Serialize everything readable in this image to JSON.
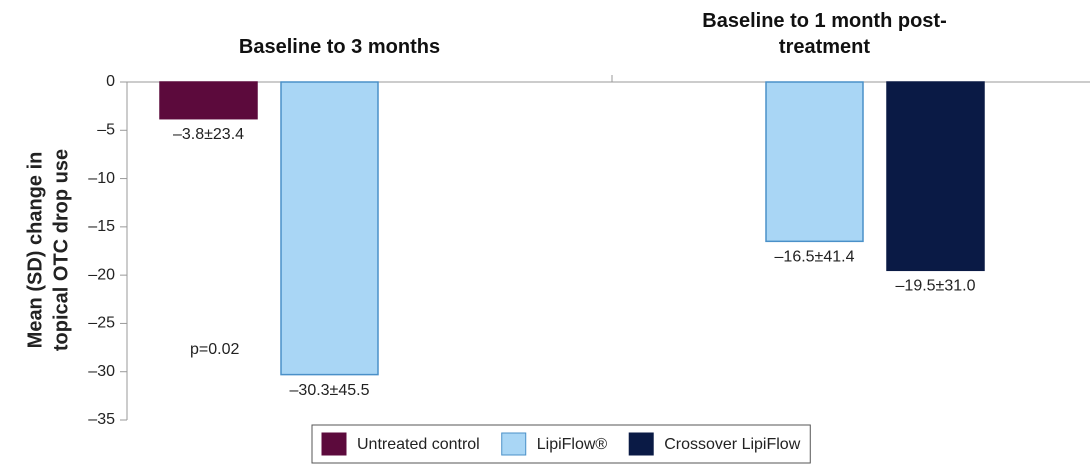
{
  "chart_data": {
    "type": "bar",
    "ylabel": [
      "Mean (SD) change in",
      "topical OTC drop use"
    ],
    "categories": [
      "Baseline to 3 months",
      "Baseline to 1 month post-treatment"
    ],
    "series": [
      {
        "name": "Untreated control",
        "color": "#5c0a3c",
        "values": [
          -3.8,
          null
        ],
        "value_labels": [
          "–3.8±23.4",
          null
        ]
      },
      {
        "name": "LipiFlow®",
        "color": "#a9d6f5",
        "values": [
          -30.3,
          -16.5
        ],
        "value_labels": [
          "–30.3±45.5",
          "–16.5±41.4"
        ]
      },
      {
        "name": "Crossover LipiFlow",
        "color": "#0a1a45",
        "values": [
          null,
          -19.5
        ],
        "value_labels": [
          null,
          "–19.5±31.0"
        ]
      }
    ],
    "ylim": [
      -35,
      0
    ],
    "yticks": [
      0,
      {
        "value": -5,
        "label": "–5"
      },
      {
        "value": -10,
        "label": "–10"
      },
      {
        "value": -15,
        "label": "–15"
      },
      {
        "value": -20,
        "label": "–20"
      },
      {
        "value": -25,
        "label": "–25"
      },
      {
        "value": -30,
        "label": "–30"
      },
      {
        "value": -35,
        "label": "–35"
      }
    ],
    "annotation": "p=0.02",
    "legend": "bottom"
  }
}
